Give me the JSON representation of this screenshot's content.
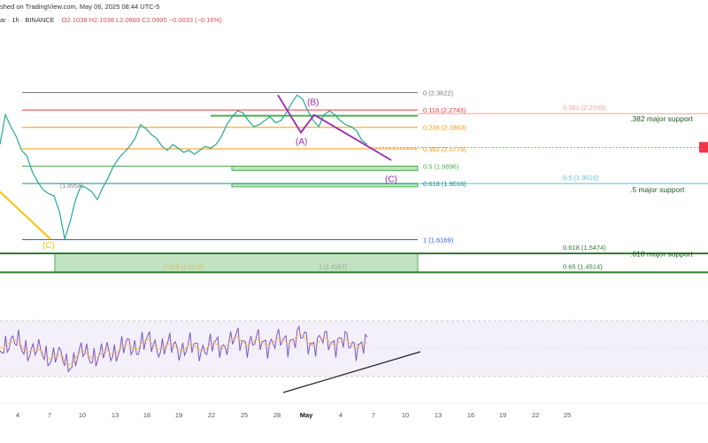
{
  "header": {
    "published": "shed on TradingView.com, May 06, 2025 08:44 UTC-5",
    "symbol_line": "ar · 1h · BINANCE",
    "ohlc": "O2.1038 H2.1038 L2.0869 C2.0995 −0.0033 (−0.16%)"
  },
  "chart_data": {
    "type": "line",
    "price_ylim": [
      1.35,
      2.45
    ],
    "x_ticks": [
      "4",
      "7",
      "10",
      "13",
      "16",
      "19",
      "22",
      "25",
      "28",
      "May",
      "4",
      "7",
      "10",
      "13",
      "16",
      "19",
      "22",
      "25"
    ],
    "fib_levels": [
      {
        "label": "0 (2.3622)",
        "value": 2.3622,
        "color": "#787b86"
      },
      {
        "label": "0.118 (2.2743)",
        "value": 2.2743,
        "color": "#f23645"
      },
      {
        "label": "0.236 (2.1863)",
        "value": 2.1863,
        "color": "#ff9800"
      },
      {
        "label": "0.382 (2.0775)",
        "value": 2.0775,
        "color": "#ff9800"
      },
      {
        "label": "0.5 (1.9896)",
        "value": 1.9896,
        "color": "#4caf50"
      },
      {
        "label": "0.618 (1.9016)",
        "value": 1.9016,
        "color": "#089981"
      },
      {
        "label": "1 (1.6169)",
        "value": 1.6169,
        "color": "#2962ff"
      }
    ],
    "fib_right_levels": [
      {
        "label": "0.382 (2.2559)",
        "value": 2.2559,
        "color": "#f7a1a8"
      },
      {
        "label": "0.5 (1.9016)",
        "value": 1.9016,
        "color": "#5bc0de"
      },
      {
        "label": "0.618 (1.5474)",
        "value": 1.5474,
        "color": "#2e7d32"
      },
      {
        "label": "0.65 (1.4514)",
        "value": 1.4514,
        "color": "#2e7d32"
      }
    ],
    "annotations": [
      {
        "text": ".382 major support",
        "value": 2.23
      },
      {
        "text": ".5 major support",
        "value": 1.87
      },
      {
        "text": ".618 major support",
        "value": 1.545
      }
    ],
    "wave_labels": [
      "(A)",
      "(B)",
      "(C)",
      "(C)"
    ],
    "faded_labels": [
      "(1.8954)",
      "0.618 (1.3148)",
      "1 (1.4167)"
    ],
    "price_series": [
      2.1,
      2.25,
      2.19,
      2.14,
      2.07,
      2.04,
      1.96,
      1.91,
      1.87,
      1.85,
      1.84,
      1.76,
      1.62,
      1.71,
      1.82,
      1.89,
      1.88,
      1.86,
      1.82,
      1.88,
      1.93,
      1.99,
      2.03,
      2.06,
      2.09,
      2.13,
      2.2,
      2.18,
      2.15,
      2.13,
      2.09,
      2.07,
      2.1,
      2.08,
      2.06,
      2.07,
      2.05,
      2.07,
      2.09,
      2.08,
      2.1,
      2.14,
      2.2,
      2.24,
      2.27,
      2.26,
      2.22,
      2.19,
      2.2,
      2.22,
      2.24,
      2.21,
      2.22,
      2.26,
      2.31,
      2.35,
      2.33,
      2.27,
      2.22,
      2.19,
      2.25,
      2.27,
      2.25,
      2.22,
      2.2,
      2.19,
      2.17,
      2.12,
      2.1
    ]
  }
}
